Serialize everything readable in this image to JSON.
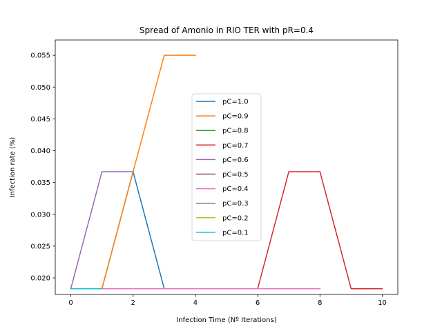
{
  "chart_data": {
    "type": "line",
    "title": "Spread of Amonio in RIO TER with pR=0.4",
    "xlabel": "Infection Time (Nº Iterations)",
    "ylabel": "Infection rate (%)",
    "xlim": [
      -0.5,
      10.5
    ],
    "ylim": [
      0.0174,
      0.0574
    ],
    "xticks": [
      0,
      2,
      4,
      6,
      8,
      10
    ],
    "xtick_labels": [
      "0",
      "2",
      "4",
      "6",
      "8",
      "10"
    ],
    "yticks": [
      0.02,
      0.025,
      0.03,
      0.035,
      0.04,
      0.045,
      0.05,
      0.055
    ],
    "ytick_labels": [
      "0.020",
      "0.025",
      "0.030",
      "0.035",
      "0.040",
      "0.045",
      "0.050",
      "0.055"
    ],
    "grid": false,
    "legend_position": "center",
    "series": [
      {
        "name": "pC=1.0",
        "color": "#1f77b4",
        "x": [
          0,
          1,
          2,
          3,
          4
        ],
        "y": [
          0.0183,
          0.0183,
          0.0367,
          0.0183,
          0.0183
        ]
      },
      {
        "name": "pC=0.9",
        "color": "#ff7f0e",
        "x": [
          0,
          1,
          2,
          3,
          4
        ],
        "y": [
          0.0183,
          0.0183,
          0.0367,
          0.055,
          0.055
        ]
      },
      {
        "name": "pC=0.8",
        "color": "#2ca02c",
        "x": [
          0,
          1,
          2
        ],
        "y": [
          0.0183,
          0.0183,
          0.0183
        ]
      },
      {
        "name": "pC=0.7",
        "color": "#d62728",
        "x": [
          0,
          1,
          2,
          3,
          4,
          5,
          6,
          7,
          8,
          9,
          10
        ],
        "y": [
          0.0183,
          0.0183,
          0.0183,
          0.0183,
          0.0183,
          0.0183,
          0.0183,
          0.0367,
          0.0367,
          0.0183,
          0.0183
        ]
      },
      {
        "name": "pC=0.6",
        "color": "#9467bd",
        "x": [
          0,
          1,
          2
        ],
        "y": [
          0.0183,
          0.0367,
          0.0367
        ]
      },
      {
        "name": "pC=0.5",
        "color": "#8c564b",
        "x": [
          0,
          1,
          2
        ],
        "y": [
          0.0183,
          0.0183,
          0.0183
        ]
      },
      {
        "name": "pC=0.4",
        "color": "#e377c2",
        "x": [
          0,
          1,
          2,
          3,
          4,
          5,
          6,
          7,
          8
        ],
        "y": [
          0.0183,
          0.0183,
          0.0183,
          0.0183,
          0.0183,
          0.0183,
          0.0183,
          0.0183,
          0.0183
        ]
      },
      {
        "name": "pC=0.3",
        "color": "#7f7f7f",
        "x": [
          0,
          1
        ],
        "y": [
          0.0183,
          0.0183
        ]
      },
      {
        "name": "pC=0.2",
        "color": "#bcbd22",
        "x": [
          0,
          1
        ],
        "y": [
          0.0183,
          0.0183
        ]
      },
      {
        "name": "pC=0.1",
        "color": "#17becf",
        "x": [
          0,
          1
        ],
        "y": [
          0.0183,
          0.0183
        ]
      }
    ]
  }
}
